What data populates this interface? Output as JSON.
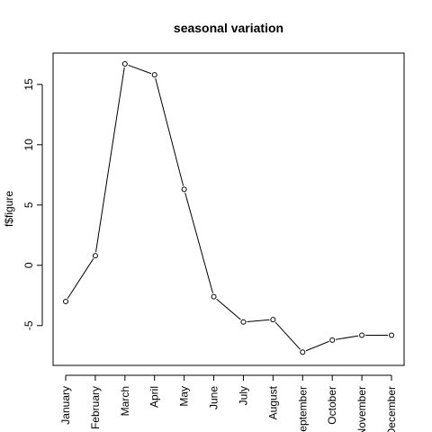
{
  "chart_data": {
    "type": "line",
    "title": "seasonal variation",
    "xlabel": "",
    "ylabel": "f$figure",
    "categories": [
      "January",
      "February",
      "March",
      "April",
      "May",
      "June",
      "July",
      "August",
      "September",
      "October",
      "November",
      "December"
    ],
    "series": [
      {
        "values": [
          -3.0,
          0.8,
          16.7,
          15.8,
          6.3,
          -2.6,
          -4.7,
          -4.5,
          -7.2,
          -6.2,
          -5.8,
          -5.8
        ]
      }
    ],
    "ylim": [
      -8.3,
      17.6
    ],
    "yticks": [
      -5,
      0,
      5,
      10,
      15
    ],
    "ytick_labels": [
      "-5",
      "0",
      "5",
      "10",
      "15"
    ],
    "grid": false,
    "markers": "open-circle",
    "line_color": "#000000"
  }
}
